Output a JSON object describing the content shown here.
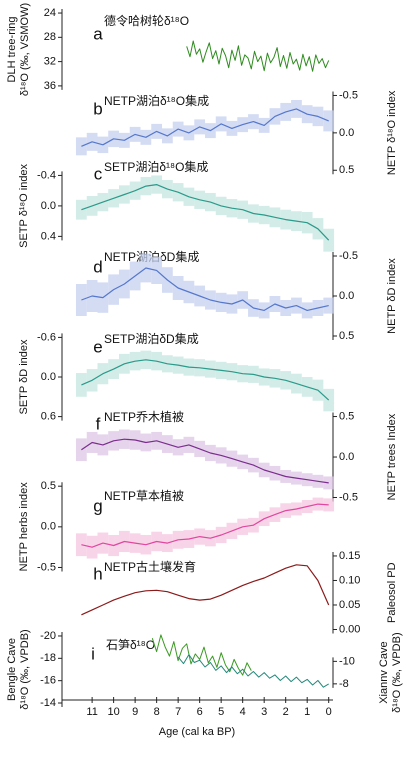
{
  "chart_data": [
    {
      "type": "line",
      "letter": "a",
      "title": "德令哈树轮δ¹⁸O",
      "ylabel": [
        "DLH tree-ring",
        "δ¹⁸O (‰, VSMOW)"
      ],
      "side": "left",
      "inverted": true,
      "ylim": [
        23.5,
        37.5
      ],
      "yticks": [
        24,
        28,
        32,
        36
      ],
      "series": [
        {
          "color": "#2e8b1e",
          "x": [
            6.6,
            6.45,
            6.3,
            6.15,
            6.0,
            5.85,
            5.7,
            5.55,
            5.4,
            5.25,
            5.1,
            4.95,
            4.8,
            4.65,
            4.5,
            4.35,
            4.2,
            4.05,
            3.9,
            3.75,
            3.6,
            3.45,
            3.3,
            3.15,
            3.0,
            2.85,
            2.7,
            2.55,
            2.4,
            2.25,
            2.1,
            1.95,
            1.8,
            1.65,
            1.5,
            1.35,
            1.2,
            1.05,
            0.9,
            0.75,
            0.6,
            0.45,
            0.3,
            0.15,
            0.0
          ],
          "values": [
            29.5,
            31.2,
            28.6,
            30.8,
            29.9,
            32.1,
            30.4,
            28.9,
            31.5,
            30.2,
            32.4,
            29.8,
            31.0,
            33.0,
            30.1,
            31.8,
            29.4,
            32.6,
            30.9,
            31.4,
            33.2,
            30.3,
            32.0,
            31.1,
            33.5,
            30.6,
            32.2,
            31.3,
            29.7,
            32.8,
            31.0,
            33.1,
            30.5,
            32.4,
            31.6,
            33.4,
            30.8,
            32.7,
            31.2,
            33.6,
            30.9,
            32.3,
            31.5,
            33.0,
            31.8
          ]
        }
      ]
    },
    {
      "type": "line",
      "letter": "b",
      "title": "NETP湖泊δ¹⁸O集成",
      "ylabel": [
        "NETP δ¹⁸O index"
      ],
      "side": "right",
      "inverted": true,
      "ylim": [
        -0.7,
        0.55
      ],
      "yticks": [
        -0.5,
        {
          "value": 0,
          "label": "0.0"
        },
        0.5
      ],
      "series": [
        {
          "color": "#5577cc",
          "band": "#c5d0f0",
          "x": [
            11.5,
            11,
            10.5,
            10,
            9.5,
            9,
            8.5,
            8,
            7.5,
            7,
            6.5,
            6,
            5.5,
            5,
            4.5,
            4,
            3.5,
            3,
            2.5,
            2,
            1.5,
            1,
            0.5,
            0
          ],
          "values": [
            0.18,
            0.12,
            0.16,
            0.08,
            0.1,
            0.02,
            0.06,
            -0.02,
            0.04,
            -0.05,
            0.0,
            -0.08,
            -0.03,
            -0.12,
            -0.06,
            -0.11,
            -0.15,
            -0.1,
            -0.22,
            -0.28,
            -0.32,
            -0.25,
            -0.22,
            -0.16
          ],
          "errors": [
            0.12,
            0.12,
            0.11,
            0.11,
            0.1,
            0.1,
            0.1,
            0.1,
            0.1,
            0.1,
            0.1,
            0.1,
            0.1,
            0.1,
            0.1,
            0.1,
            0.1,
            0.1,
            0.11,
            0.12,
            0.12,
            0.12,
            0.13,
            0.14
          ]
        }
      ]
    },
    {
      "type": "line",
      "letter": "c",
      "title": "SETP湖泊δ¹⁸O集成",
      "ylabel": [
        "SETP δ¹⁸O index"
      ],
      "side": "left",
      "inverted": true,
      "ylim": [
        -0.55,
        0.5
      ],
      "yticks": [
        -0.4,
        {
          "value": 0,
          "label": "0.0"
        },
        0.4
      ],
      "series": [
        {
          "color": "#2a9a8a",
          "band": "#c4e6e0",
          "x": [
            11.5,
            11,
            10.5,
            10,
            9.5,
            9,
            8.5,
            8,
            7.5,
            7,
            6.5,
            6,
            5.5,
            5,
            4.5,
            4,
            3.5,
            3,
            2.5,
            2,
            1.5,
            1,
            0.5,
            0
          ],
          "values": [
            0.05,
            0.0,
            -0.05,
            -0.1,
            -0.15,
            -0.2,
            -0.26,
            -0.28,
            -0.22,
            -0.18,
            -0.12,
            -0.08,
            -0.05,
            0.0,
            0.03,
            0.05,
            0.1,
            0.12,
            0.15,
            0.18,
            0.2,
            0.22,
            0.3,
            0.45
          ],
          "errors": [
            0.13,
            0.13,
            0.12,
            0.12,
            0.12,
            0.12,
            0.12,
            0.12,
            0.12,
            0.12,
            0.12,
            0.12,
            0.12,
            0.12,
            0.12,
            0.12,
            0.12,
            0.12,
            0.13,
            0.13,
            0.13,
            0.14,
            0.14,
            0.15
          ]
        }
      ]
    },
    {
      "type": "line",
      "letter": "d",
      "title": "NETP湖泊δD集成",
      "ylabel": [
        "NETP δD index"
      ],
      "side": "right",
      "inverted": true,
      "ylim": [
        -0.75,
        0.55
      ],
      "yticks": [
        -0.5,
        {
          "value": 0,
          "label": "0.0"
        },
        0.5
      ],
      "series": [
        {
          "color": "#5577cc",
          "band": "#c5d0f0",
          "x": [
            11.5,
            11,
            10.5,
            10,
            9.5,
            9,
            8.5,
            8,
            7.5,
            7,
            6.5,
            6,
            5.5,
            5,
            4.5,
            4,
            3.5,
            3,
            2.5,
            2,
            1.5,
            1,
            0.5,
            0
          ],
          "values": [
            0.05,
            0.0,
            0.02,
            -0.08,
            -0.15,
            -0.25,
            -0.35,
            -0.32,
            -0.2,
            -0.1,
            -0.05,
            0.0,
            0.05,
            0.08,
            0.1,
            0.05,
            0.15,
            0.18,
            0.1,
            0.15,
            0.12,
            0.18,
            0.15,
            0.12
          ],
          "errors": [
            0.2,
            0.2,
            0.19,
            0.19,
            0.18,
            0.18,
            0.18,
            0.17,
            0.16,
            0.15,
            0.14,
            0.13,
            0.12,
            0.12,
            0.12,
            0.11,
            0.11,
            0.1,
            0.1,
            0.1,
            0.1,
            0.1,
            0.1,
            0.1
          ]
        }
      ]
    },
    {
      "type": "line",
      "letter": "e",
      "title": "SETP湖泊δD集成",
      "ylabel": [
        "SETP δD index"
      ],
      "side": "left",
      "inverted": true,
      "ylim": [
        -0.75,
        0.7
      ],
      "yticks": [
        -0.6,
        {
          "value": 0,
          "label": "0.0"
        },
        0.6
      ],
      "series": [
        {
          "color": "#2a9a8a",
          "band": "#c4e6e0",
          "x": [
            11.5,
            11,
            10.5,
            10,
            9.5,
            9,
            8.5,
            8,
            7.5,
            7,
            6.5,
            6,
            5.5,
            5,
            4.5,
            4,
            3.5,
            3,
            2.5,
            2,
            1.5,
            1,
            0.5,
            0
          ],
          "values": [
            0.12,
            0.05,
            -0.05,
            -0.12,
            -0.2,
            -0.24,
            -0.26,
            -0.24,
            -0.2,
            -0.18,
            -0.15,
            -0.14,
            -0.12,
            -0.1,
            -0.08,
            -0.05,
            -0.04,
            0.0,
            0.02,
            0.05,
            0.1,
            0.15,
            0.2,
            0.35
          ],
          "errors": [
            0.18,
            0.17,
            0.16,
            0.15,
            0.15,
            0.14,
            0.14,
            0.14,
            0.13,
            0.13,
            0.13,
            0.13,
            0.13,
            0.13,
            0.13,
            0.13,
            0.13,
            0.13,
            0.14,
            0.14,
            0.15,
            0.15,
            0.16,
            0.17
          ]
        }
      ]
    },
    {
      "type": "line",
      "letter": "f",
      "title": "NETP乔木植被",
      "ylabel": [
        "NETP trees Index"
      ],
      "side": "right",
      "inverted": false,
      "ylim": [
        -0.6,
        0.65
      ],
      "yticks": [
        0.5,
        {
          "value": 0,
          "label": "0.0"
        },
        -0.5
      ],
      "series": [
        {
          "color": "#7b2d8e",
          "band": "#dcc6e4",
          "x": [
            11.5,
            11,
            10.5,
            10,
            9.5,
            9,
            8.5,
            8,
            7.5,
            7,
            6.5,
            6,
            5.5,
            5,
            4.5,
            4,
            3.5,
            3,
            2.5,
            2,
            1.5,
            1,
            0.5,
            0
          ],
          "values": [
            0.09,
            0.18,
            0.15,
            0.2,
            0.22,
            0.21,
            0.18,
            0.2,
            0.16,
            0.12,
            0.15,
            0.1,
            0.05,
            0.02,
            -0.02,
            -0.06,
            -0.1,
            -0.16,
            -0.2,
            -0.24,
            -0.26,
            -0.28,
            -0.3,
            -0.32
          ],
          "errors": [
            0.14,
            0.13,
            0.13,
            0.12,
            0.12,
            0.12,
            0.11,
            0.11,
            0.11,
            0.1,
            0.1,
            0.1,
            0.1,
            0.1,
            0.1,
            0.09,
            0.09,
            0.09,
            0.09,
            0.08,
            0.08,
            0.08,
            0.08,
            0.08
          ]
        }
      ]
    },
    {
      "type": "line",
      "letter": "g",
      "title": "NETP草本植被",
      "ylabel": [
        "NETP herbs index"
      ],
      "side": "left",
      "inverted": false,
      "ylim": [
        -0.6,
        0.65
      ],
      "yticks": [
        0.5,
        {
          "value": 0,
          "label": "0.0"
        },
        -0.5
      ],
      "series": [
        {
          "color": "#e0479e",
          "band": "#f6c6e0",
          "x": [
            11.5,
            11,
            10.5,
            10,
            9.5,
            9,
            8.5,
            8,
            7.5,
            7,
            6.5,
            6,
            5.5,
            5,
            4.5,
            4,
            3.5,
            3,
            2.5,
            2,
            1.5,
            1,
            0.5,
            0
          ],
          "values": [
            -0.22,
            -0.25,
            -0.2,
            -0.23,
            -0.18,
            -0.2,
            -0.22,
            -0.18,
            -0.2,
            -0.16,
            -0.15,
            -0.12,
            -0.14,
            -0.1,
            -0.05,
            0.0,
            0.02,
            0.1,
            0.15,
            0.2,
            0.22,
            0.25,
            0.28,
            0.27
          ],
          "errors": [
            0.14,
            0.14,
            0.13,
            0.13,
            0.13,
            0.12,
            0.12,
            0.12,
            0.11,
            0.11,
            0.11,
            0.1,
            0.1,
            0.1,
            0.1,
            0.1,
            0.09,
            0.09,
            0.09,
            0.09,
            0.08,
            0.08,
            0.08,
            0.08
          ]
        }
      ]
    },
    {
      "type": "line",
      "letter": "h",
      "title": "NETP古土壤发育",
      "ylabel": [
        "Paleosol PD"
      ],
      "side": "right",
      "inverted": false,
      "ylim": [
        -0.01,
        0.165
      ],
      "yticks": [
        0.15,
        {
          "value": 0.1,
          "label": "0.10"
        },
        0.05,
        {
          "value": 0,
          "label": "0.00"
        }
      ],
      "series": [
        {
          "color": "#8b1a1a",
          "x": [
            11.5,
            11,
            10.5,
            10,
            9.5,
            9,
            8.5,
            8,
            7.5,
            7,
            6.5,
            6,
            5.5,
            5,
            4.5,
            4,
            3.5,
            3,
            2.5,
            2,
            1.5,
            1,
            0.5,
            0
          ],
          "values": [
            0.03,
            0.04,
            0.05,
            0.06,
            0.068,
            0.075,
            0.079,
            0.08,
            0.077,
            0.07,
            0.063,
            0.06,
            0.062,
            0.07,
            0.08,
            0.09,
            0.098,
            0.105,
            0.115,
            0.125,
            0.132,
            0.13,
            0.1,
            0.05
          ]
        }
      ]
    },
    {
      "type": "line",
      "letter": "i",
      "title": "石笋δ¹⁸O",
      "ylabel": [
        "Bengle Cave",
        "δ¹⁸O (‰, VPDB)"
      ],
      "side": "left",
      "inverted": true,
      "ylim": [
        -21,
        -13.5
      ],
      "yticks": [
        -20,
        -18,
        -16,
        -14
      ],
      "y2label": [
        "Xiannv Cave",
        "δ¹⁸O (‰, VPDB)"
      ],
      "y2lim": [
        -13.25,
        -5.8
      ],
      "y2ticks": [
        -10,
        -8
      ],
      "series": [
        {
          "color": "#3a9a22",
          "x": [
            8.2,
            8.0,
            7.8,
            7.6,
            7.4,
            7.2,
            7.0,
            6.8,
            6.6,
            6.4,
            6.2,
            6.0,
            5.8,
            5.6,
            5.4,
            5.2,
            5.0,
            4.8,
            4.6,
            4.4,
            4.2,
            4.0,
            3.8,
            3.6
          ],
          "values": [
            -19.8,
            -18.6,
            -20.1,
            -19.0,
            -18.2,
            -19.5,
            -17.8,
            -18.9,
            -19.3,
            -17.5,
            -18.4,
            -17.9,
            -19.0,
            -17.6,
            -18.2,
            -17.2,
            -18.5,
            -17.4,
            -16.8,
            -17.9,
            -17.1,
            -16.5,
            -17.6,
            -16.9
          ]
        },
        {
          "color": "#24887a",
          "axis": "y2",
          "x": [
            7,
            6.75,
            6.5,
            6.25,
            6,
            5.75,
            5.5,
            5.25,
            5,
            4.75,
            4.5,
            4.25,
            4,
            3.75,
            3.5,
            3.25,
            3,
            2.75,
            2.5,
            2.25,
            2,
            1.75,
            1.5,
            1.25,
            1,
            0.75,
            0.5,
            0.25,
            0
          ],
          "values": [
            -10.4,
            -9.8,
            -10.6,
            -9.9,
            -10.1,
            -9.5,
            -9.9,
            -9.2,
            -9.6,
            -9.0,
            -9.5,
            -8.9,
            -9.3,
            -8.7,
            -9.1,
            -8.6,
            -9.0,
            -8.5,
            -8.8,
            -8.3,
            -8.7,
            -8.2,
            -8.6,
            -8.1,
            -8.4,
            -7.9,
            -8.3,
            -7.7,
            -8.0
          ]
        }
      ]
    }
  ],
  "x_axis": {
    "label": "Age (cal ka BP)",
    "xlim": [
      12.4,
      -0.2
    ],
    "xticks": [
      11,
      10,
      9,
      8,
      7,
      6,
      5,
      4,
      3,
      2,
      1,
      0
    ]
  }
}
